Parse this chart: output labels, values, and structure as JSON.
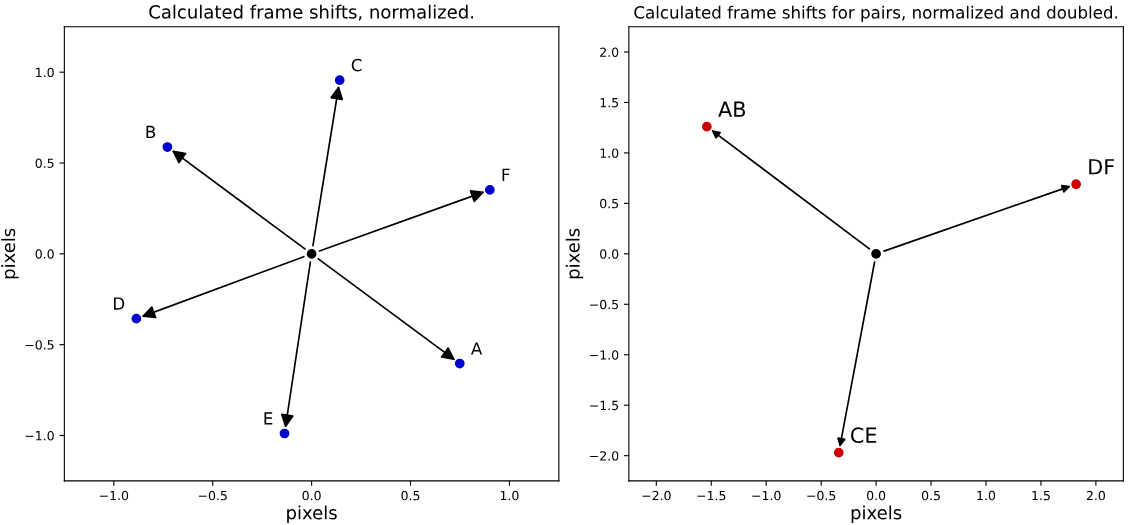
{
  "chart_data": [
    {
      "type": "scatter",
      "title": "Calculated frame shifts, normalized.",
      "xlabel": "pixels",
      "ylabel": "pixels",
      "series": [
        {
          "color": "#000000",
          "x": [
            0.0
          ],
          "values": [
            0.0
          ]
        },
        {
          "color": "#0000cc",
          "x": [
            0.749,
            -0.729,
            0.142,
            -0.886,
            -0.137,
            0.901
          ],
          "values": [
            -0.604,
            0.588,
            0.956,
            -0.357,
            -0.989,
            0.352
          ]
        }
      ],
      "annotations": [
        {
          "text": "A",
          "x": 0.749,
          "y": -0.604
        },
        {
          "text": "B",
          "x": -0.729,
          "y": 0.588
        },
        {
          "text": "C",
          "x": 0.142,
          "y": 0.956
        },
        {
          "text": "D",
          "x": -0.886,
          "y": -0.357
        },
        {
          "text": "E",
          "x": -0.137,
          "y": -0.989
        },
        {
          "text": "F",
          "x": 0.901,
          "y": 0.352
        }
      ],
      "xlim": [
        -1.25,
        1.25
      ],
      "ylim": [
        -1.25,
        1.25
      ],
      "xticks": [
        {
          "value": -1.0,
          "label": "−1.0"
        },
        {
          "value": -0.5,
          "label": "−0.5"
        },
        {
          "value": 0.0,
          "label": "0.0"
        },
        {
          "value": 0.5,
          "label": "0.5"
        },
        {
          "value": 1.0,
          "label": "1.0"
        }
      ],
      "yticks": [
        {
          "value": -1.0,
          "label": "−1.0"
        },
        {
          "value": -0.5,
          "label": "−0.5"
        },
        {
          "value": 0.0,
          "label": "0.0"
        },
        {
          "value": 0.5,
          "label": "0.5"
        },
        {
          "value": 1.0,
          "label": "1.0"
        }
      ],
      "marker": "circle",
      "grid": false,
      "legend": false
    },
    {
      "type": "scatter",
      "title": "Calculated frame shifts for pairs, normalized and doubled.",
      "xlabel": "pixels",
      "ylabel": "pixels",
      "series": [
        {
          "color": "#000000",
          "x": [
            0.0
          ],
          "values": [
            0.0
          ]
        },
        {
          "color": "#cc0000",
          "x": [
            -1.54,
            -0.34,
            1.82
          ],
          "values": [
            1.26,
            -1.97,
            0.69
          ]
        }
      ],
      "annotations": [
        {
          "text": "AB",
          "x": -1.54,
          "y": 1.26
        },
        {
          "text": "CE",
          "x": -0.34,
          "y": -1.97
        },
        {
          "text": "DF",
          "x": 1.82,
          "y": 0.69
        }
      ],
      "xlim": [
        -2.25,
        2.25
      ],
      "ylim": [
        -2.25,
        2.25
      ],
      "xticks": [
        {
          "value": -2.0,
          "label": "−2.0"
        },
        {
          "value": -1.5,
          "label": "−1.5"
        },
        {
          "value": -1.0,
          "label": "−1.0"
        },
        {
          "value": -0.5,
          "label": "−0.5"
        },
        {
          "value": 0.0,
          "label": "0.0"
        },
        {
          "value": 0.5,
          "label": "0.5"
        },
        {
          "value": 1.0,
          "label": "1.0"
        },
        {
          "value": 1.5,
          "label": "1.5"
        },
        {
          "value": 2.0,
          "label": "2.0"
        }
      ],
      "yticks": [
        {
          "value": -2.0,
          "label": "−2.0"
        },
        {
          "value": -1.5,
          "label": "−1.5"
        },
        {
          "value": -1.0,
          "label": "−1.0"
        },
        {
          "value": -0.5,
          "label": "−0.5"
        },
        {
          "value": 0.0,
          "label": "0.0"
        },
        {
          "value": 0.5,
          "label": "0.5"
        },
        {
          "value": 1.0,
          "label": "1.0"
        },
        {
          "value": 1.5,
          "label": "1.5"
        },
        {
          "value": 2.0,
          "label": "2.0"
        }
      ],
      "marker": "circle",
      "grid": false,
      "legend": false
    }
  ]
}
